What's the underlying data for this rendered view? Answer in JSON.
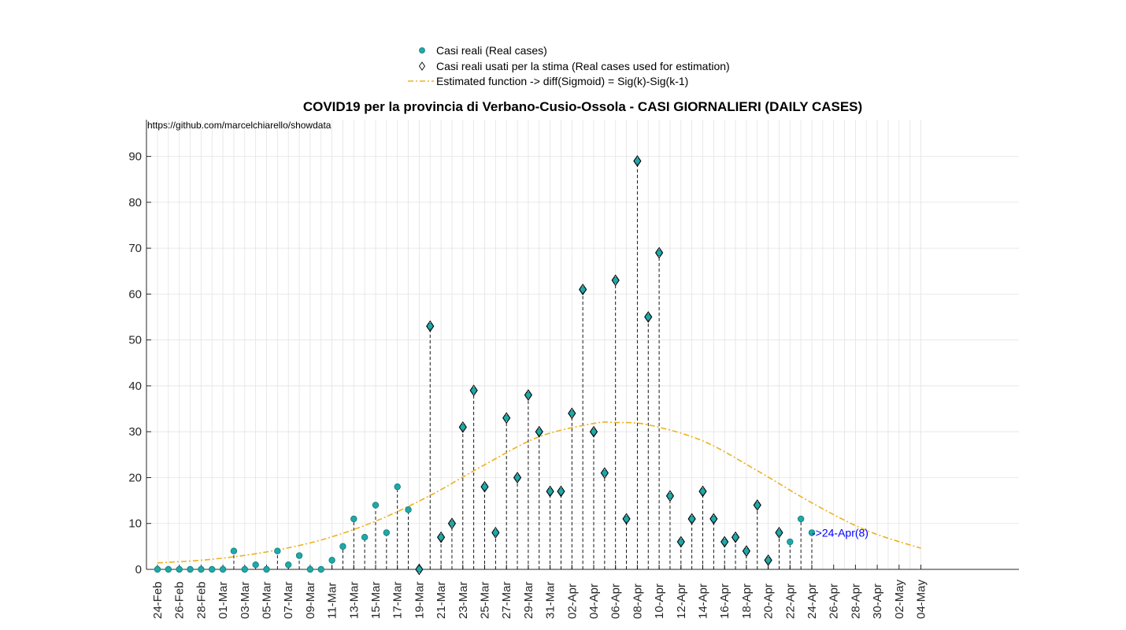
{
  "chart_data": {
    "type": "scatter",
    "title": "COVID19 per la provincia di Verbano-Cusio-Ossola - CASI GIORNALIERI (DAILY CASES)",
    "source_text": "https://github.com/marcelchiarello/showdata",
    "xlabel": "",
    "ylabel": "",
    "ylim": [
      0,
      98
    ],
    "yticks": [
      0,
      10,
      20,
      30,
      40,
      50,
      60,
      70,
      80,
      90
    ],
    "grid": true,
    "legend_position": "top-center",
    "x_tick_labels": [
      "24-Feb",
      "26-Feb",
      "28-Feb",
      "01-Mar",
      "03-Mar",
      "05-Mar",
      "07-Mar",
      "09-Mar",
      "11-Mar",
      "13-Mar",
      "15-Mar",
      "17-Mar",
      "19-Mar",
      "21-Mar",
      "23-Mar",
      "25-Mar",
      "27-Mar",
      "29-Mar",
      "31-Mar",
      "02-Apr",
      "04-Apr",
      "06-Apr",
      "08-Apr",
      "10-Apr",
      "12-Apr",
      "14-Apr",
      "16-Apr",
      "18-Apr",
      "20-Apr",
      "22-Apr",
      "24-Apr",
      "26-Apr",
      "28-Apr",
      "30-Apr",
      "02-May",
      "04-May"
    ],
    "x_day_range": [
      "24-Feb",
      "04-May"
    ],
    "series": [
      {
        "name": "Casi reali (Real cases)",
        "marker": "circle",
        "color": "#1fa8a8",
        "start_date": "24-Feb",
        "values": [
          0,
          0,
          0,
          0,
          0,
          0,
          0,
          4,
          0,
          1,
          0,
          4,
          1,
          3,
          0,
          0,
          2,
          5,
          11,
          7,
          14,
          8,
          18,
          13,
          0,
          53,
          7,
          10,
          31,
          39,
          18,
          8,
          33,
          20,
          38,
          30,
          17,
          17,
          34,
          61,
          30,
          21,
          63,
          11,
          89,
          55,
          69,
          16,
          6,
          11,
          17,
          11,
          6,
          7,
          4,
          14,
          2,
          8,
          6,
          11,
          8
        ]
      },
      {
        "name": "Casi reali usati per la stima (Real cases used for estimation)",
        "marker": "diamond",
        "color": "#1fa8a8",
        "start_date": "19-Mar",
        "values": [
          0,
          53,
          7,
          10,
          31,
          39,
          18,
          8,
          33,
          20,
          38,
          30,
          17,
          17,
          34,
          61,
          30,
          21,
          63,
          11,
          89,
          55,
          69,
          16,
          6,
          11,
          17,
          11,
          6,
          7,
          4,
          14,
          2,
          8
        ]
      },
      {
        "name": "Estimated function -> diff(Sigmoid) = Sig(k)-Sig(k-1)",
        "style": "dash-dot",
        "color": "#edb120",
        "x_days": [
          0,
          5,
          10,
          15,
          20,
          25,
          30,
          35,
          40,
          42,
          45,
          50,
          55,
          60,
          65,
          70
        ],
        "values": [
          1.4,
          2.2,
          3.8,
          6.4,
          10.5,
          16.1,
          22.8,
          28.9,
          31.8,
          32.0,
          31.5,
          28.0,
          21.5,
          14.5,
          8.5,
          4.6
        ]
      }
    ],
    "annotations": [
      {
        "text": "->24-Apr(8)",
        "date": "24-Apr",
        "y": 8
      }
    ]
  }
}
